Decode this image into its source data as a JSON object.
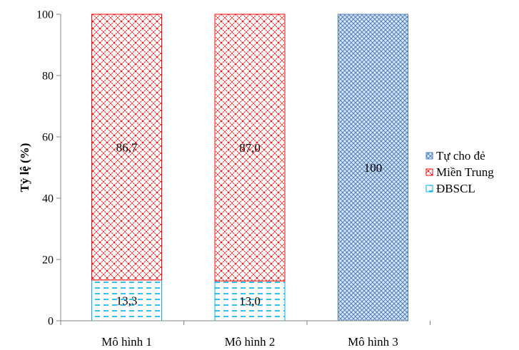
{
  "chart_data": {
    "type": "bar",
    "stacked": true,
    "title": "",
    "xlabel": "",
    "ylabel": "Tỷ lệ (%)",
    "ylim": [
      0,
      100
    ],
    "yticks": [
      0,
      20,
      40,
      60,
      80,
      100
    ],
    "categories": [
      "Mô hình 1",
      "Mô hình 2",
      "Mô hình 3"
    ],
    "series": [
      {
        "name": "ĐBSCL",
        "values": [
          13.3,
          13.0,
          0
        ],
        "labels": [
          "13,3",
          "13,0",
          ""
        ],
        "color": "#00b0f0",
        "pattern": "dashes"
      },
      {
        "name": "Miền Trung",
        "values": [
          86.7,
          87.0,
          0
        ],
        "labels": [
          "86,7",
          "87,0",
          ""
        ],
        "color": "#ff0000",
        "pattern": "diamond-lattice"
      },
      {
        "name": "Tự cho đẻ",
        "values": [
          0,
          0,
          100
        ],
        "labels": [
          "",
          "",
          "100"
        ],
        "color": "#4f81bd",
        "pattern": "cross-hatch"
      }
    ],
    "legend": {
      "position": "right",
      "order": [
        "Tự cho đẻ",
        "Miền Trung",
        "ĐBSCL"
      ]
    },
    "grid": false
  }
}
